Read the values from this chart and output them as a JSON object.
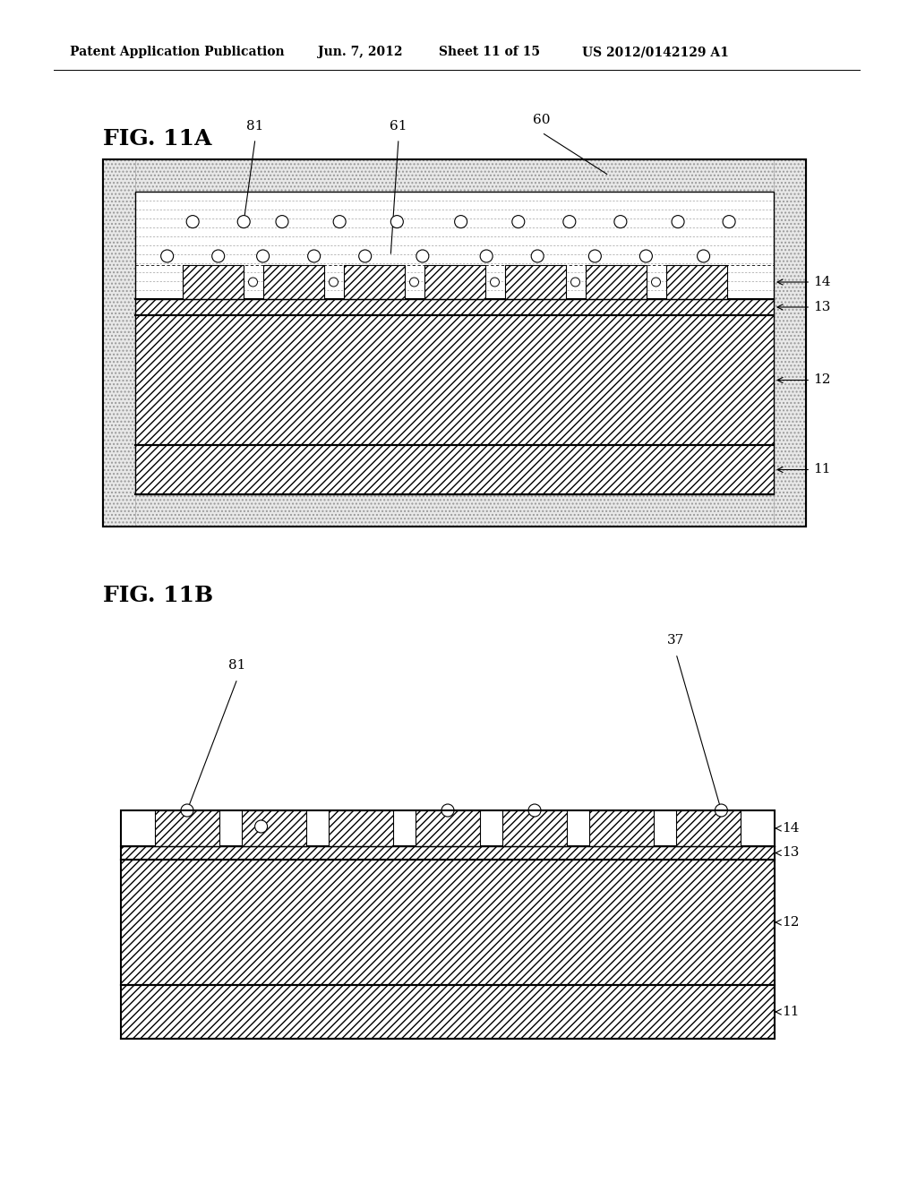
{
  "bg_color": "#ffffff",
  "header_text": "Patent Application Publication",
  "header_date": "Jun. 7, 2012",
  "header_sheet": "Sheet 11 of 15",
  "header_patent": "US 2012/0142129 A1",
  "fig_a_label": "FIG. 11A",
  "fig_b_label": "FIG. 11B"
}
